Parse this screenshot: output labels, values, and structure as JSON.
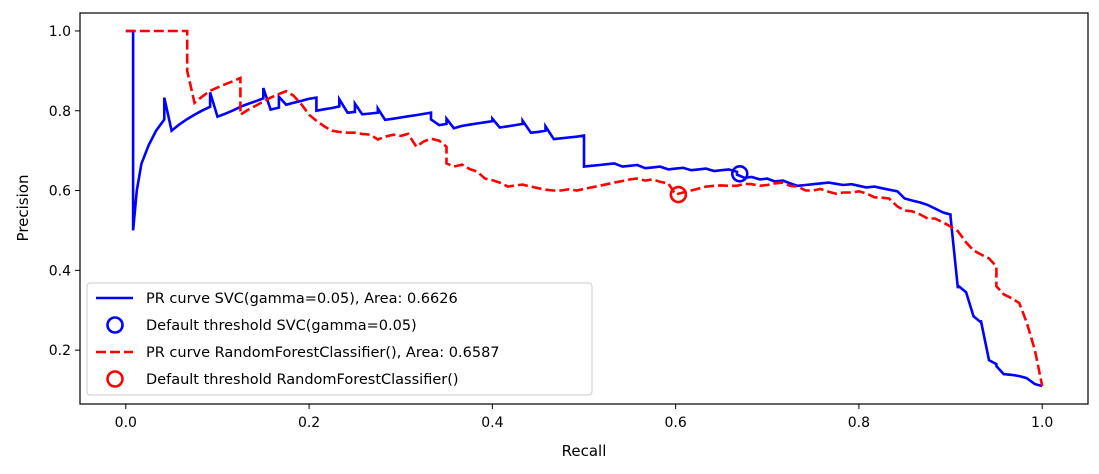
{
  "chart_data": {
    "type": "line",
    "title": "",
    "xlabel": "Recall",
    "ylabel": "Precision",
    "xlim": [
      -0.05,
      1.05
    ],
    "ylim": [
      0.065,
      1.045
    ],
    "xticks": [
      0.0,
      0.2,
      0.4,
      0.6,
      0.8,
      1.0
    ],
    "xtick_labels": [
      "0.0",
      "0.2",
      "0.4",
      "0.6",
      "0.8",
      "1.0"
    ],
    "yticks": [
      0.2,
      0.4,
      0.6,
      0.8,
      1.0
    ],
    "ytick_labels": [
      "0.2",
      "0.4",
      "0.6",
      "0.8",
      "1.0"
    ],
    "grid": false,
    "legend_position": "lower-left",
    "series": [
      {
        "name": "PR curve SVC(gamma=0.05), Area: 0.6626",
        "kind": "line",
        "color": "#0000ff",
        "dash": "solid",
        "x": [
          0.0,
          0.008,
          0.008,
          0.008,
          0.012,
          0.017,
          0.025,
          0.033,
          0.042,
          0.042,
          0.05,
          0.058,
          0.067,
          0.075,
          0.083,
          0.092,
          0.092,
          0.1,
          0.108,
          0.117,
          0.125,
          0.133,
          0.142,
          0.15,
          0.15,
          0.158,
          0.167,
          0.167,
          0.175,
          0.183,
          0.192,
          0.2,
          0.208,
          0.208,
          0.217,
          0.225,
          0.233,
          0.233,
          0.242,
          0.25,
          0.25,
          0.258,
          0.267,
          0.275,
          0.275,
          0.283,
          0.292,
          0.3,
          0.308,
          0.317,
          0.325,
          0.333,
          0.333,
          0.342,
          0.35,
          0.35,
          0.358,
          0.367,
          0.375,
          0.383,
          0.392,
          0.4,
          0.4,
          0.408,
          0.417,
          0.425,
          0.433,
          0.433,
          0.442,
          0.45,
          0.458,
          0.458,
          0.467,
          0.475,
          0.483,
          0.492,
          0.5,
          0.5,
          0.508,
          0.517,
          0.525,
          0.533,
          0.542,
          0.55,
          0.558,
          0.567,
          0.575,
          0.583,
          0.592,
          0.6,
          0.608,
          0.617,
          0.625,
          0.633,
          0.642,
          0.65,
          0.658,
          0.667,
          0.667,
          0.675,
          0.683,
          0.692,
          0.7,
          0.708,
          0.717,
          0.725,
          0.733,
          0.742,
          0.75,
          0.758,
          0.767,
          0.775,
          0.783,
          0.792,
          0.8,
          0.808,
          0.817,
          0.825,
          0.833,
          0.842,
          0.85,
          0.858,
          0.867,
          0.875,
          0.883,
          0.892,
          0.9,
          0.9,
          0.908,
          0.908,
          0.917,
          0.925,
          0.933,
          0.933,
          0.942,
          0.95,
          0.95,
          0.958,
          0.967,
          0.975,
          0.983,
          0.992,
          1.0
        ],
        "y": [
          1.0,
          1.0,
          0.8,
          0.5,
          0.6,
          0.667,
          0.714,
          0.75,
          0.778,
          0.833,
          0.75,
          0.765,
          0.779,
          0.79,
          0.8,
          0.81,
          0.846,
          0.785,
          0.792,
          0.801,
          0.81,
          0.817,
          0.824,
          0.831,
          0.857,
          0.803,
          0.808,
          0.835,
          0.815,
          0.82,
          0.825,
          0.83,
          0.833,
          0.8,
          0.804,
          0.807,
          0.811,
          0.829,
          0.795,
          0.797,
          0.818,
          0.791,
          0.793,
          0.795,
          0.806,
          0.777,
          0.78,
          0.783,
          0.786,
          0.789,
          0.792,
          0.795,
          0.778,
          0.764,
          0.767,
          0.78,
          0.756,
          0.762,
          0.765,
          0.768,
          0.771,
          0.774,
          0.78,
          0.758,
          0.761,
          0.764,
          0.767,
          0.775,
          0.745,
          0.747,
          0.75,
          0.761,
          0.729,
          0.731,
          0.733,
          0.735,
          0.738,
          0.66,
          0.662,
          0.664,
          0.666,
          0.668,
          0.66,
          0.662,
          0.664,
          0.656,
          0.658,
          0.66,
          0.653,
          0.655,
          0.657,
          0.651,
          0.653,
          0.655,
          0.649,
          0.651,
          0.653,
          0.647,
          0.64,
          0.632,
          0.634,
          0.628,
          0.63,
          0.623,
          0.625,
          0.618,
          0.612,
          0.614,
          0.616,
          0.618,
          0.62,
          0.617,
          0.614,
          0.616,
          0.612,
          0.608,
          0.61,
          0.606,
          0.602,
          0.598,
          0.58,
          0.575,
          0.57,
          0.564,
          0.555,
          0.545,
          0.54,
          0.535,
          0.355,
          0.362,
          0.345,
          0.285,
          0.27,
          0.275,
          0.175,
          0.165,
          0.16,
          0.14,
          0.138,
          0.135,
          0.13,
          0.115,
          0.11
        ]
      },
      {
        "name": "Default threshold SVC(gamma=0.05)",
        "kind": "marker",
        "color": "#0000ff",
        "x": [
          0.67
        ],
        "y": [
          0.642
        ]
      },
      {
        "name": "PR curve RandomForestClassifier(), Area: 0.6587",
        "kind": "line",
        "color": "#ff0000",
        "dash": "dashed",
        "x": [
          0.0,
          0.067,
          0.067,
          0.075,
          0.083,
          0.092,
          0.1,
          0.108,
          0.117,
          0.125,
          0.125,
          0.133,
          0.142,
          0.15,
          0.158,
          0.167,
          0.175,
          0.183,
          0.192,
          0.2,
          0.208,
          0.217,
          0.225,
          0.233,
          0.242,
          0.25,
          0.258,
          0.267,
          0.275,
          0.283,
          0.292,
          0.3,
          0.308,
          0.317,
          0.325,
          0.333,
          0.342,
          0.35,
          0.35,
          0.358,
          0.367,
          0.375,
          0.383,
          0.392,
          0.4,
          0.408,
          0.417,
          0.425,
          0.433,
          0.442,
          0.45,
          0.458,
          0.467,
          0.475,
          0.483,
          0.492,
          0.5,
          0.508,
          0.517,
          0.525,
          0.533,
          0.542,
          0.55,
          0.558,
          0.567,
          0.575,
          0.583,
          0.592,
          0.6,
          0.608,
          0.617,
          0.625,
          0.633,
          0.642,
          0.65,
          0.658,
          0.667,
          0.675,
          0.683,
          0.692,
          0.7,
          0.708,
          0.717,
          0.725,
          0.733,
          0.742,
          0.75,
          0.758,
          0.767,
          0.775,
          0.783,
          0.792,
          0.8,
          0.808,
          0.817,
          0.825,
          0.833,
          0.842,
          0.85,
          0.858,
          0.867,
          0.875,
          0.883,
          0.892,
          0.9,
          0.908,
          0.917,
          0.925,
          0.933,
          0.942,
          0.95,
          0.95,
          0.958,
          0.967,
          0.975,
          0.983,
          0.992,
          1.0
        ],
        "y": [
          1.0,
          1.0,
          0.9,
          0.82,
          0.835,
          0.85,
          0.858,
          0.866,
          0.874,
          0.882,
          0.79,
          0.802,
          0.813,
          0.823,
          0.833,
          0.842,
          0.849,
          0.838,
          0.815,
          0.79,
          0.775,
          0.76,
          0.75,
          0.747,
          0.745,
          0.745,
          0.742,
          0.74,
          0.728,
          0.735,
          0.74,
          0.737,
          0.742,
          0.71,
          0.723,
          0.73,
          0.725,
          0.71,
          0.668,
          0.66,
          0.665,
          0.654,
          0.648,
          0.63,
          0.626,
          0.62,
          0.61,
          0.613,
          0.615,
          0.61,
          0.606,
          0.602,
          0.6,
          0.6,
          0.603,
          0.6,
          0.604,
          0.608,
          0.612,
          0.616,
          0.62,
          0.624,
          0.628,
          0.63,
          0.625,
          0.628,
          0.622,
          0.618,
          0.59,
          0.595,
          0.6,
          0.605,
          0.61,
          0.612,
          0.613,
          0.612,
          0.612,
          0.617,
          0.616,
          0.612,
          0.614,
          0.618,
          0.62,
          0.612,
          0.61,
          0.6,
          0.6,
          0.604,
          0.597,
          0.592,
          0.595,
          0.595,
          0.598,
          0.593,
          0.583,
          0.582,
          0.58,
          0.56,
          0.55,
          0.548,
          0.54,
          0.53,
          0.53,
          0.52,
          0.51,
          0.498,
          0.47,
          0.45,
          0.44,
          0.43,
          0.41,
          0.36,
          0.34,
          0.33,
          0.318,
          0.27,
          0.2,
          0.11
        ]
      },
      {
        "name": "Default threshold RandomForestClassifier()",
        "kind": "marker",
        "color": "#ff0000",
        "x": [
          0.603
        ],
        "y": [
          0.59
        ]
      }
    ]
  }
}
